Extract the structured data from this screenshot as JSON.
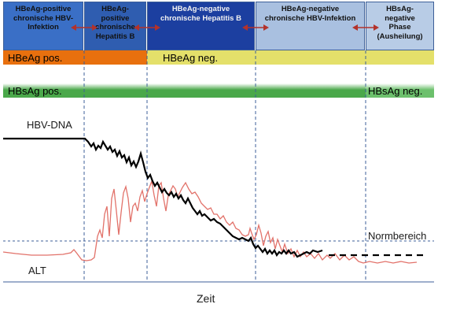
{
  "phases": [
    {
      "text": "HBeAg-positive chronische HBV-Infektion",
      "bg": "#3a6fc6",
      "fg": "#111111"
    },
    {
      "text": "HBeAg-positive chronische Hepatitis B",
      "bg": "#2f5db0",
      "fg": "#111111"
    },
    {
      "text": "HBeAg-negative chronische Hepatitis B",
      "bg": "#1c3fa0",
      "fg": "#f2f2f2"
    },
    {
      "text": "HBeAg-negative chronische HBV-Infektion",
      "bg": "#a9c0e0",
      "fg": "#111111"
    },
    {
      "text": "HBsAg-negative Phase (Ausheilung)",
      "bg": "#b8cce6",
      "fg": "#111111"
    }
  ],
  "hbeag": {
    "pos_label": "HBeAg pos.",
    "neg_label": "HBeAg neg.",
    "pos_color": "#e8700e",
    "neg_color": "#e4e06a"
  },
  "hbsag": {
    "pos_label": "HBsAg pos.",
    "neg_label": "HBsAg neg.",
    "pos_color": "#4aa84a",
    "neg_color": "#6cc06c"
  },
  "curves": {
    "dna_label": "HBV-DNA",
    "alt_label": "ALT",
    "dna_color": "#000000",
    "alt_color": "#e2726a"
  },
  "normal_label": "Normbereich",
  "x_label": "Zeit",
  "arrow_color": "#b3322b"
}
